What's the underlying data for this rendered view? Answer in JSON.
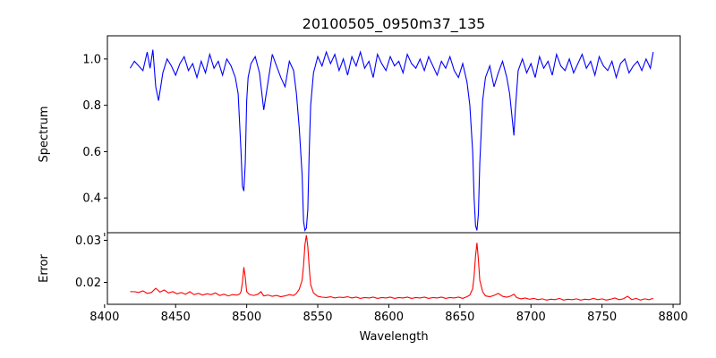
{
  "chart_data": {
    "type": "line",
    "title": "20100505_0950m37_135",
    "xlabel": "Wavelength",
    "xlim": [
      8402,
      8805
    ],
    "xticks": [
      8400,
      8450,
      8500,
      8550,
      8600,
      8650,
      8700,
      8750,
      8800
    ],
    "panels": [
      {
        "ylabel": "Spectrum",
        "ylim": [
          0.25,
          1.1
        ],
        "yticks": [
          0.4,
          0.6,
          0.8,
          1.0
        ],
        "ytick_labels": [
          "0.4",
          "0.6",
          "0.8",
          "1.0"
        ],
        "color": "#0000ff",
        "series": [
          {
            "x": [
              8418,
              8421,
              8424,
              8427,
              8430,
              8432,
              8434,
              8436,
              8438,
              8441,
              8444,
              8447,
              8450,
              8453,
              8456,
              8459,
              8462,
              8465,
              8468,
              8471,
              8474,
              8477,
              8480,
              8483,
              8486,
              8489,
              8492,
              8494,
              8496,
              8497,
              8498,
              8499,
              8500,
              8501,
              8503,
              8506,
              8509,
              8512,
              8515,
              8518,
              8521,
              8524,
              8527,
              8530,
              8533,
              8535,
              8537,
              8539,
              8540,
              8541,
              8542,
              8543,
              8544,
              8545,
              8547,
              8550,
              8553,
              8556,
              8559,
              8562,
              8565,
              8568,
              8571,
              8574,
              8577,
              8580,
              8583,
              8586,
              8589,
              8592,
              8595,
              8598,
              8601,
              8604,
              8607,
              8610,
              8613,
              8616,
              8619,
              8622,
              8625,
              8628,
              8631,
              8634,
              8637,
              8640,
              8643,
              8646,
              8649,
              8652,
              8655,
              8657,
              8659,
              8660,
              8661,
              8662,
              8663,
              8664,
              8666,
              8668,
              8671,
              8674,
              8677,
              8680,
              8683,
              8685,
              8687,
              8688,
              8689,
              8691,
              8694,
              8697,
              8700,
              8703,
              8706,
              8709,
              8712,
              8715,
              8718,
              8721,
              8724,
              8727,
              8730,
              8733,
              8736,
              8739,
              8742,
              8745,
              8748,
              8751,
              8754,
              8757,
              8760,
              8763,
              8766,
              8769,
              8772,
              8775,
              8778,
              8781,
              8784,
              8786
            ],
            "y": [
              0.96,
              0.99,
              0.97,
              0.95,
              1.03,
              0.96,
              1.04,
              0.88,
              0.82,
              0.94,
              1.0,
              0.97,
              0.93,
              0.98,
              1.01,
              0.95,
              0.98,
              0.92,
              0.99,
              0.94,
              1.02,
              0.96,
              0.99,
              0.93,
              1.0,
              0.97,
              0.92,
              0.85,
              0.6,
              0.45,
              0.43,
              0.55,
              0.82,
              0.92,
              0.98,
              1.01,
              0.94,
              0.78,
              0.9,
              1.02,
              0.97,
              0.92,
              0.88,
              0.99,
              0.95,
              0.85,
              0.7,
              0.5,
              0.3,
              0.26,
              0.27,
              0.35,
              0.6,
              0.8,
              0.94,
              1.01,
              0.97,
              1.03,
              0.98,
              1.02,
              0.95,
              1.0,
              0.93,
              1.01,
              0.97,
              1.03,
              0.96,
              0.99,
              0.92,
              1.02,
              0.98,
              0.95,
              1.01,
              0.97,
              0.99,
              0.94,
              1.02,
              0.98,
              0.96,
              1.0,
              0.95,
              1.01,
              0.97,
              0.93,
              0.99,
              0.96,
              1.01,
              0.95,
              0.92,
              0.98,
              0.9,
              0.8,
              0.6,
              0.4,
              0.28,
              0.26,
              0.33,
              0.55,
              0.82,
              0.92,
              0.97,
              0.88,
              0.94,
              0.99,
              0.92,
              0.85,
              0.73,
              0.67,
              0.78,
              0.95,
              1.0,
              0.94,
              0.98,
              0.92,
              1.01,
              0.96,
              0.99,
              0.93,
              1.02,
              0.97,
              0.95,
              1.0,
              0.94,
              0.98,
              1.02,
              0.96,
              0.99,
              0.93,
              1.01,
              0.97,
              0.95,
              0.99,
              0.92,
              0.98,
              1.0,
              0.94,
              0.97,
              0.99,
              0.95,
              1.0,
              0.96,
              1.03
            ]
          }
        ]
      },
      {
        "ylabel": "Error",
        "ylim": [
          0.0148,
          0.0318
        ],
        "yticks": [
          0.02,
          0.03
        ],
        "ytick_labels": [
          "0.02",
          "0.03"
        ],
        "color": "#ff0000",
        "series": [
          {
            "x": [
              8418,
              8421,
              8424,
              8427,
              8430,
              8433,
              8436,
              8439,
              8442,
              8445,
              8448,
              8451,
              8454,
              8457,
              8460,
              8463,
              8466,
              8469,
              8472,
              8475,
              8478,
              8481,
              8484,
              8487,
              8490,
              8493,
              8495,
              8496,
              8497,
              8498,
              8499,
              8500,
              8502,
              8505,
              8508,
              8510,
              8512,
              8515,
              8518,
              8521,
              8524,
              8527,
              8530,
              8533,
              8535,
              8537,
              8539,
              8540,
              8541,
              8542,
              8543,
              8544,
              8545,
              8547,
              8550,
              8553,
              8556,
              8559,
              8562,
              8565,
              8568,
              8571,
              8574,
              8577,
              8580,
              8583,
              8586,
              8589,
              8592,
              8595,
              8598,
              8601,
              8604,
              8607,
              8610,
              8613,
              8616,
              8619,
              8622,
              8625,
              8628,
              8631,
              8634,
              8637,
              8640,
              8643,
              8646,
              8649,
              8652,
              8655,
              8657,
              8659,
              8660,
              8661,
              8662,
              8663,
              8664,
              8666,
              8668,
              8671,
              8674,
              8677,
              8680,
              8683,
              8686,
              8688,
              8690,
              8693,
              8696,
              8699,
              8702,
              8705,
              8708,
              8711,
              8714,
              8717,
              8720,
              8723,
              8726,
              8729,
              8732,
              8735,
              8738,
              8741,
              8744,
              8747,
              8750,
              8753,
              8756,
              8759,
              8762,
              8765,
              8768,
              8771,
              8774,
              8777,
              8780,
              8783,
              8786
            ],
            "y": [
              0.0178,
              0.0178,
              0.0176,
              0.018,
              0.0174,
              0.0176,
              0.0186,
              0.0177,
              0.0182,
              0.0175,
              0.0178,
              0.0173,
              0.0176,
              0.0172,
              0.0178,
              0.0171,
              0.0174,
              0.017,
              0.0173,
              0.0171,
              0.0175,
              0.0169,
              0.0172,
              0.0168,
              0.0171,
              0.017,
              0.0172,
              0.0178,
              0.02,
              0.0236,
              0.0212,
              0.0178,
              0.0171,
              0.0169,
              0.0172,
              0.0178,
              0.0168,
              0.017,
              0.0167,
              0.0169,
              0.0166,
              0.0168,
              0.0171,
              0.0169,
              0.0174,
              0.0184,
              0.0205,
              0.024,
              0.029,
              0.0312,
              0.0285,
              0.0235,
              0.0195,
              0.0175,
              0.0167,
              0.0165,
              0.0164,
              0.0166,
              0.0163,
              0.0165,
              0.0164,
              0.0166,
              0.0163,
              0.0165,
              0.0162,
              0.0164,
              0.0163,
              0.0165,
              0.0162,
              0.0164,
              0.0163,
              0.0165,
              0.0162,
              0.0164,
              0.0163,
              0.0165,
              0.0162,
              0.0164,
              0.0163,
              0.0165,
              0.0162,
              0.0164,
              0.0163,
              0.0165,
              0.0162,
              0.0164,
              0.0163,
              0.0165,
              0.0162,
              0.0166,
              0.017,
              0.0185,
              0.0215,
              0.0262,
              0.0294,
              0.0255,
              0.0205,
              0.0178,
              0.0168,
              0.0166,
              0.0169,
              0.0174,
              0.0167,
              0.0165,
              0.0168,
              0.0172,
              0.0164,
              0.0161,
              0.0163,
              0.016,
              0.0162,
              0.0159,
              0.0161,
              0.0158,
              0.016,
              0.0159,
              0.0162,
              0.0158,
              0.016,
              0.0159,
              0.0161,
              0.0158,
              0.016,
              0.0159,
              0.0162,
              0.0159,
              0.0161,
              0.0158,
              0.016,
              0.0163,
              0.0159,
              0.0161,
              0.0167,
              0.0159,
              0.0162,
              0.0158,
              0.0161,
              0.0159,
              0.0162
            ]
          }
        ]
      }
    ]
  }
}
